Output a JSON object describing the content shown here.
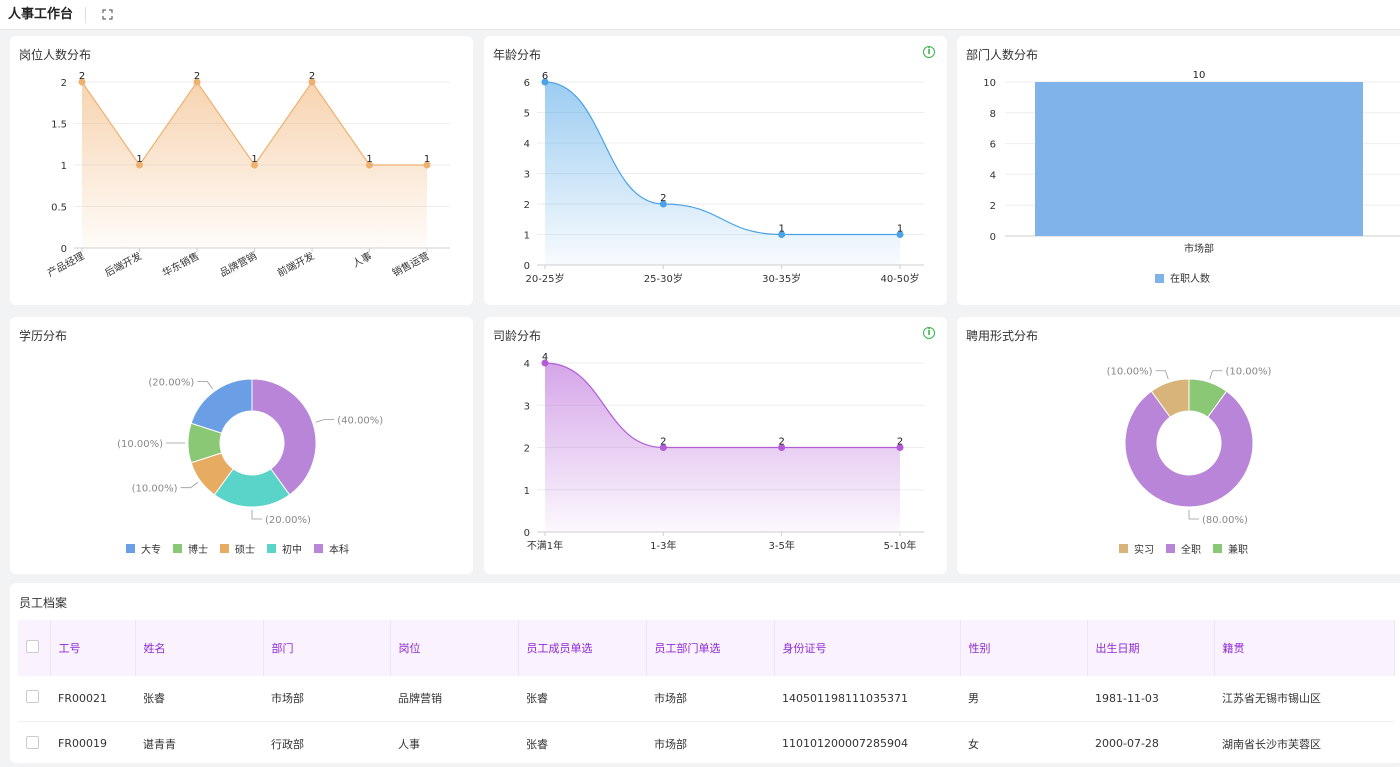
{
  "app": {
    "title": "人事工作台",
    "expand_icon": "expand-icon"
  },
  "cards": {
    "post": {
      "title": "岗位人数分布"
    },
    "age": {
      "title": "年龄分布",
      "info_icon": "info-icon"
    },
    "dept": {
      "title": "部门人数分布",
      "legend": "在职人数"
    },
    "edu": {
      "title": "学历分布"
    },
    "tenure": {
      "title": "司龄分布",
      "info_icon": "info-icon"
    },
    "hire": {
      "title": "聘用形式分布"
    }
  },
  "chart_data": [
    {
      "type": "area",
      "title": "岗位人数分布",
      "categories": [
        "产品经理",
        "后端开发",
        "华东销售",
        "品牌营销",
        "前端开发",
        "人事",
        "销售运营"
      ],
      "values": [
        2,
        1,
        2,
        1,
        2,
        1,
        1
      ],
      "ylim": [
        0,
        2
      ],
      "yticks": [
        "0",
        "0.5",
        "1",
        "1.5",
        "2"
      ],
      "color": "#f0b070"
    },
    {
      "type": "area",
      "title": "年龄分布",
      "categories": [
        "20-25岁",
        "25-30岁",
        "30-35岁",
        "40-50岁"
      ],
      "values": [
        6,
        2,
        1,
        1
      ],
      "ylim": [
        0,
        6
      ],
      "yticks": [
        "0",
        "1",
        "2",
        "3",
        "4",
        "5",
        "6"
      ],
      "color": "#4ba3e6"
    },
    {
      "type": "bar",
      "title": "部门人数分布",
      "categories": [
        "市场部"
      ],
      "series": [
        {
          "name": "在职人数",
          "values": [
            10
          ]
        }
      ],
      "ylim": [
        0,
        10
      ],
      "yticks": [
        "0",
        "2",
        "4",
        "6",
        "8",
        "10"
      ],
      "color": "#80b3ea",
      "legend": "bottom"
    },
    {
      "type": "pie",
      "title": "学历分布",
      "slices": [
        {
          "name": "本科",
          "value": 40,
          "label": "(40.00%)",
          "color": "#b985d8"
        },
        {
          "name": "初中",
          "value": 20,
          "label": "(20.00%)",
          "color": "#5ad3c8"
        },
        {
          "name": "硕士",
          "value": 10,
          "label": "(10.00%)",
          "color": "#e8ab62"
        },
        {
          "name": "博士",
          "value": 10,
          "label": "(10.00%)",
          "color": "#8bc876"
        },
        {
          "name": "大专",
          "value": 20,
          "label": "(20.00%)",
          "color": "#6a9fe6"
        }
      ],
      "legend_order": [
        "大专",
        "博士",
        "硕士",
        "初中",
        "本科"
      ],
      "legend": "bottom"
    },
    {
      "type": "area",
      "title": "司龄分布",
      "categories": [
        "不满1年",
        "1-3年",
        "3-5年",
        "5-10年"
      ],
      "values": [
        4,
        2,
        2,
        2
      ],
      "ylim": [
        0,
        4
      ],
      "yticks": [
        "0",
        "1",
        "2",
        "3",
        "4"
      ],
      "color": "#b25cd6"
    },
    {
      "type": "pie",
      "title": "聘用形式分布",
      "slices": [
        {
          "name": "兼职",
          "value": 10,
          "label": "(10.00%)",
          "color": "#8bc876"
        },
        {
          "name": "全职",
          "value": 80,
          "label": "(80.00%)",
          "color": "#b985d8"
        },
        {
          "name": "实习",
          "value": 10,
          "label": "(10.00%)",
          "color": "#d9b47a"
        }
      ],
      "legend_order": [
        "实习",
        "全职",
        "兼职"
      ],
      "legend": "bottom"
    }
  ],
  "table": {
    "title": "员工档案",
    "columns": [
      "工号",
      "姓名",
      "部门",
      "岗位",
      "员工成员单选",
      "员工部门单选",
      "身份证号",
      "性别",
      "出生日期",
      "籍贯"
    ],
    "rows": [
      [
        "FR00021",
        "张睿",
        "市场部",
        "品牌营销",
        "张睿",
        "市场部",
        "140501198111035371",
        "男",
        "1981-11-03",
        "江苏省无锡市锡山区"
      ],
      [
        "FR00019",
        "谌青青",
        "行政部",
        "人事",
        "张睿",
        "市场部",
        "110101200007285904",
        "女",
        "2000-07-28",
        "湖南省长沙市芙蓉区"
      ]
    ]
  }
}
